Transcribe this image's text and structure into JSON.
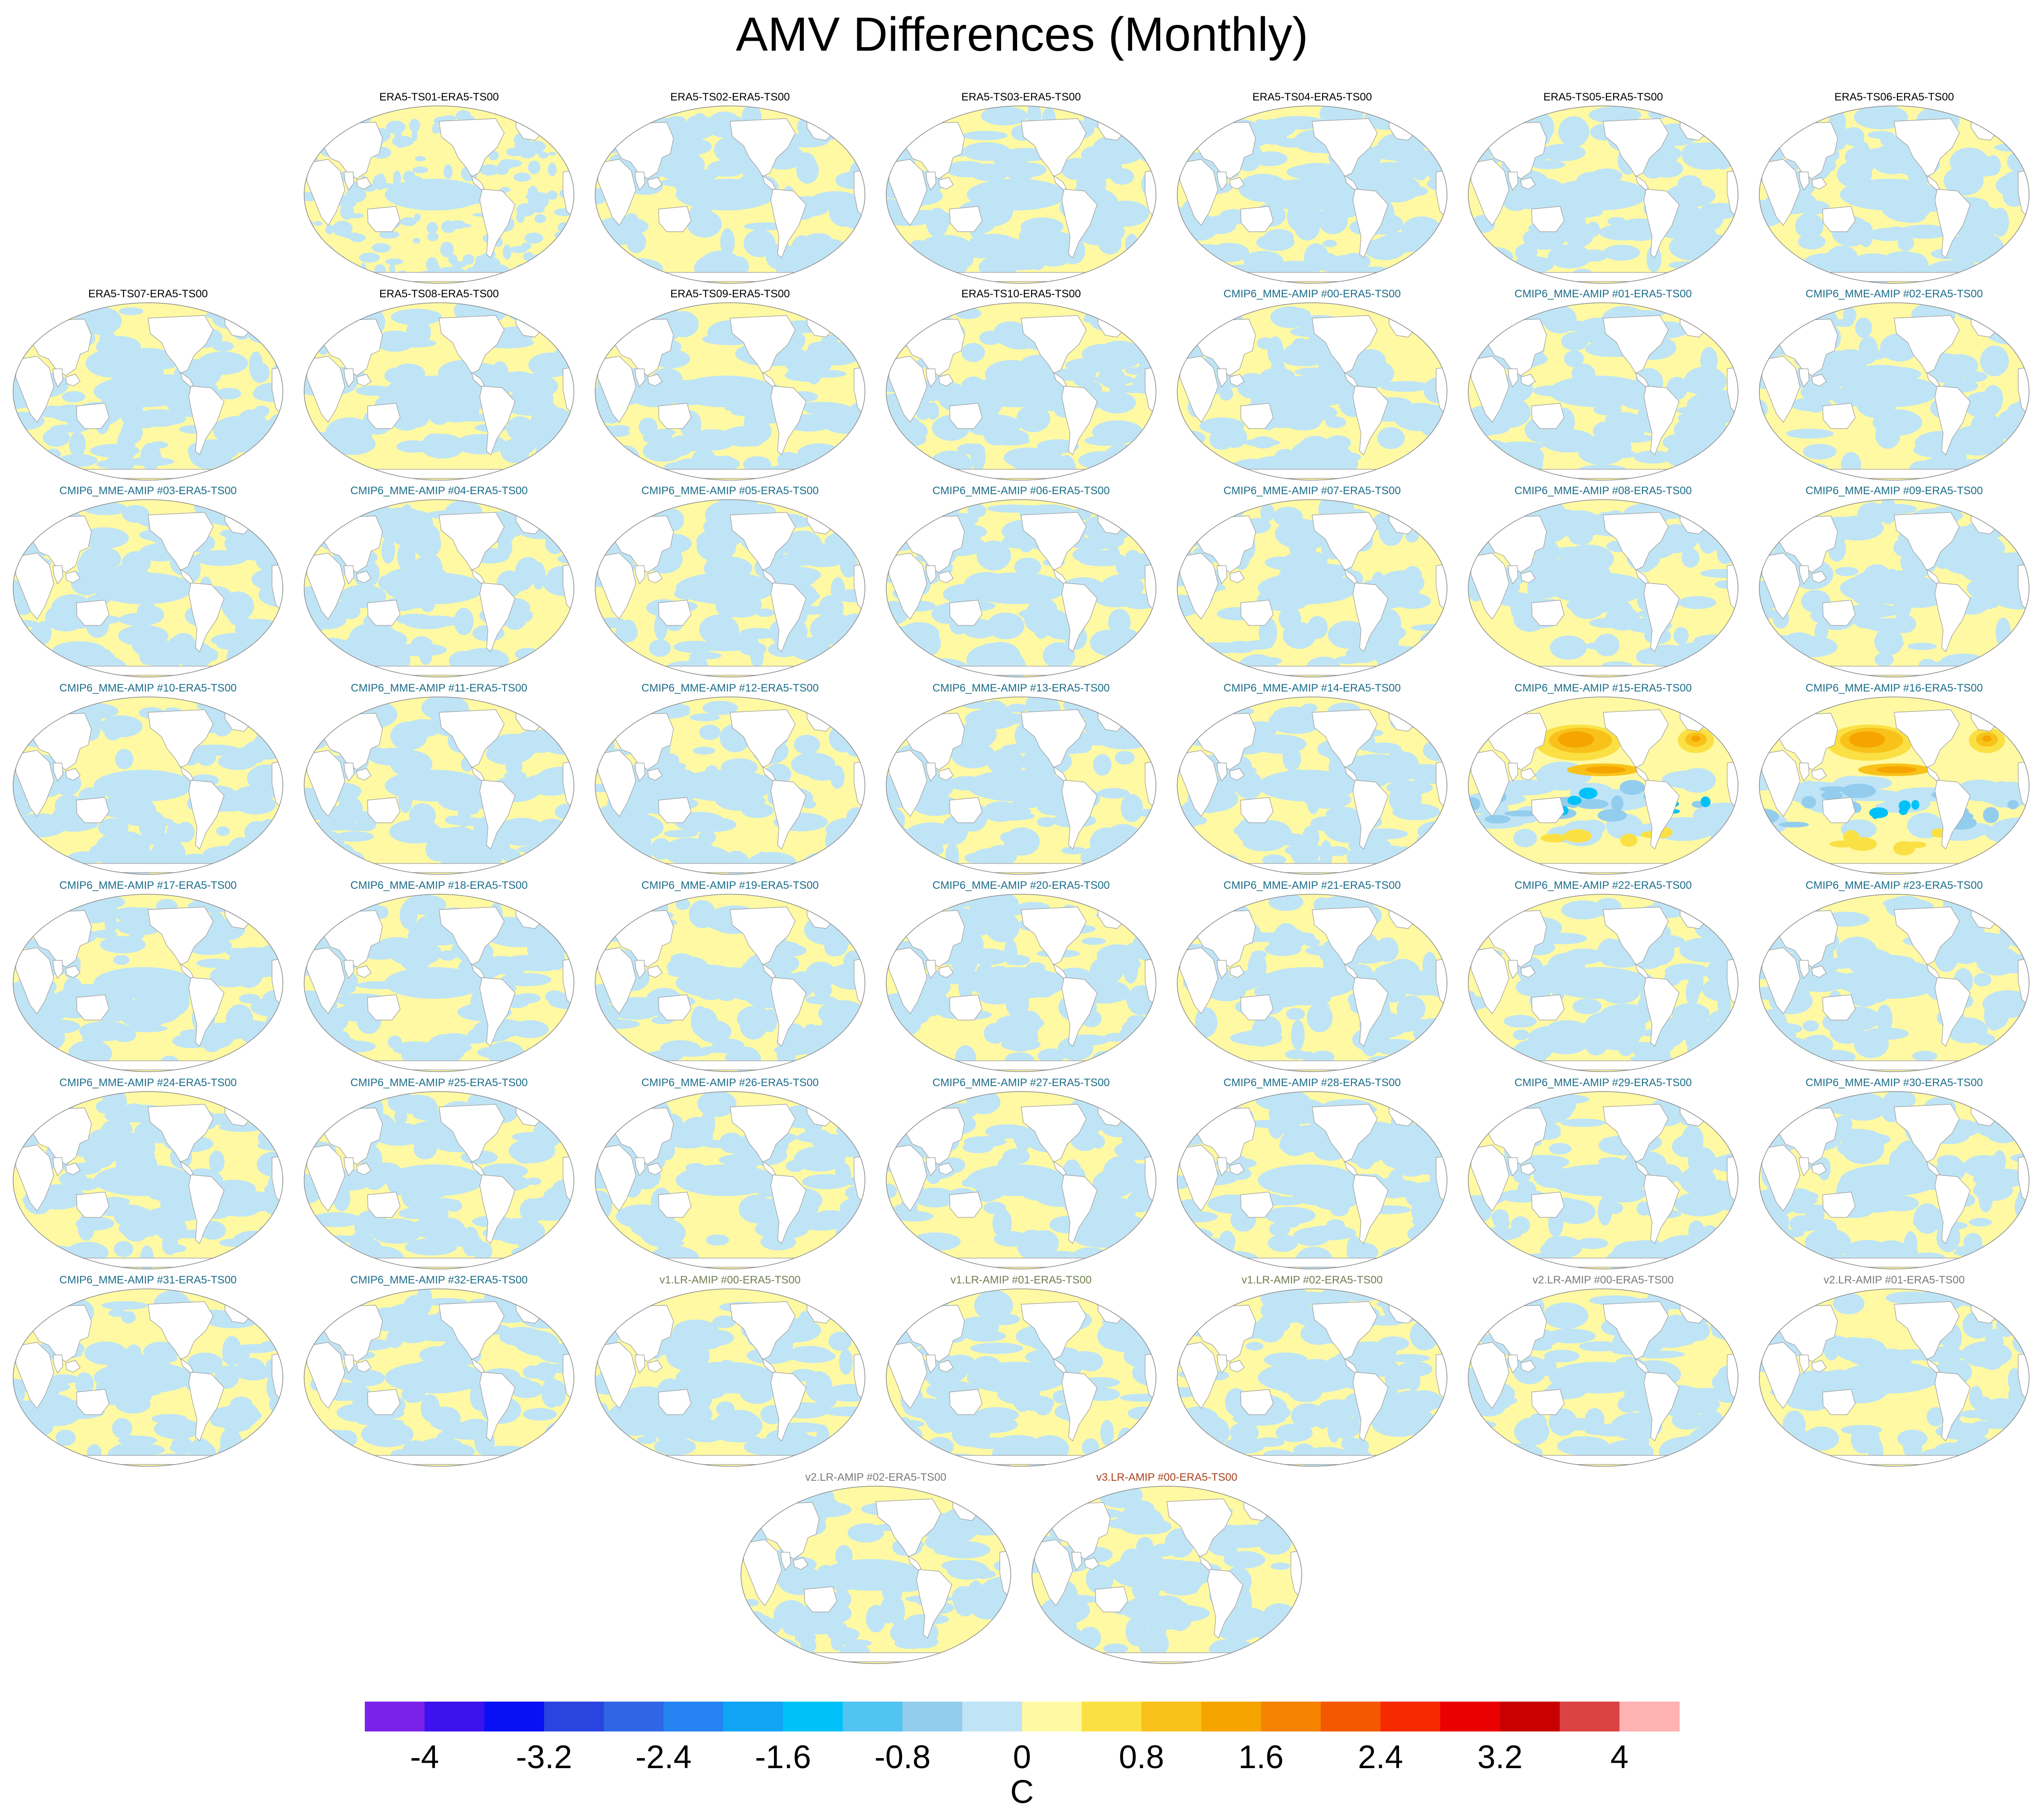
{
  "chart_data": {
    "type": "heatmap",
    "title": "AMV Differences (Monthly)",
    "projection": "Robinson global, Pacific-centered",
    "colorbar": {
      "unit": "C",
      "ticks": [
        "-4",
        "-3.2",
        "-2.4",
        "-1.6",
        "-0.8",
        "0",
        "0.8",
        "1.6",
        "2.4",
        "3.2",
        "4"
      ],
      "range": [
        -4.4,
        4.4
      ],
      "step": 0.4,
      "colors": [
        "#7a22e8",
        "#3d12ee",
        "#0a10f5",
        "#2a44e0",
        "#2f66e6",
        "#2583f2",
        "#12a5f5",
        "#00c2f8",
        "#52c4f2",
        "#93cdee",
        "#bfe4f6",
        "#fff9a3",
        "#fbe044",
        "#f8c21a",
        "#f6a500",
        "#f58300",
        "#f45800",
        "#f52a00",
        "#ea0000",
        "#c80000",
        "#dd4242",
        "#ffb2b2"
      ]
    },
    "panels": [
      {
        "label": "ERA5-TS01-ERA5-TS00",
        "group": "era5",
        "pattern": "mixed-fine"
      },
      {
        "label": "ERA5-TS02-ERA5-TS00",
        "group": "era5",
        "pattern": "mixed"
      },
      {
        "label": "ERA5-TS03-ERA5-TS00",
        "group": "era5",
        "pattern": "mixed"
      },
      {
        "label": "ERA5-TS04-ERA5-TS00",
        "group": "era5",
        "pattern": "mixed"
      },
      {
        "label": "ERA5-TS05-ERA5-TS00",
        "group": "era5",
        "pattern": "mixed"
      },
      {
        "label": "ERA5-TS06-ERA5-TS00",
        "group": "era5",
        "pattern": "mixed"
      },
      {
        "label": "ERA5-TS07-ERA5-TS00",
        "group": "era5",
        "pattern": "mixed"
      },
      {
        "label": "ERA5-TS08-ERA5-TS00",
        "group": "era5",
        "pattern": "mixed"
      },
      {
        "label": "ERA5-TS09-ERA5-TS00",
        "group": "era5",
        "pattern": "mixed"
      },
      {
        "label": "ERA5-TS10-ERA5-TS00",
        "group": "era5",
        "pattern": "mixed"
      },
      {
        "label": "CMIP6_MME-AMIP  #00-ERA5-TS00",
        "group": "cmip6",
        "pattern": "mixed"
      },
      {
        "label": "CMIP6_MME-AMIP  #01-ERA5-TS00",
        "group": "cmip6",
        "pattern": "mixed"
      },
      {
        "label": "CMIP6_MME-AMIP  #02-ERA5-TS00",
        "group": "cmip6",
        "pattern": "mixed"
      },
      {
        "label": "CMIP6_MME-AMIP  #03-ERA5-TS00",
        "group": "cmip6",
        "pattern": "mixed"
      },
      {
        "label": "CMIP6_MME-AMIP  #04-ERA5-TS00",
        "group": "cmip6",
        "pattern": "mixed"
      },
      {
        "label": "CMIP6_MME-AMIP  #05-ERA5-TS00",
        "group": "cmip6",
        "pattern": "mixed"
      },
      {
        "label": "CMIP6_MME-AMIP  #06-ERA5-TS00",
        "group": "cmip6",
        "pattern": "mixed"
      },
      {
        "label": "CMIP6_MME-AMIP  #07-ERA5-TS00",
        "group": "cmip6",
        "pattern": "mixed"
      },
      {
        "label": "CMIP6_MME-AMIP  #08-ERA5-TS00",
        "group": "cmip6",
        "pattern": "mixed"
      },
      {
        "label": "CMIP6_MME-AMIP  #09-ERA5-TS00",
        "group": "cmip6",
        "pattern": "mixed"
      },
      {
        "label": "CMIP6_MME-AMIP  #10-ERA5-TS00",
        "group": "cmip6",
        "pattern": "mixed"
      },
      {
        "label": "CMIP6_MME-AMIP  #11-ERA5-TS00",
        "group": "cmip6",
        "pattern": "mixed"
      },
      {
        "label": "CMIP6_MME-AMIP  #12-ERA5-TS00",
        "group": "cmip6",
        "pattern": "mixed"
      },
      {
        "label": "CMIP6_MME-AMIP  #13-ERA5-TS00",
        "group": "cmip6",
        "pattern": "mixed"
      },
      {
        "label": "CMIP6_MME-AMIP  #14-ERA5-TS00",
        "group": "cmip6",
        "pattern": "mixed"
      },
      {
        "label": "CMIP6_MME-AMIP  #15-ERA5-TS00",
        "group": "cmip6",
        "pattern": "strong"
      },
      {
        "label": "CMIP6_MME-AMIP  #16-ERA5-TS00",
        "group": "cmip6",
        "pattern": "strong"
      },
      {
        "label": "CMIP6_MME-AMIP  #17-ERA5-TS00",
        "group": "cmip6",
        "pattern": "mixed"
      },
      {
        "label": "CMIP6_MME-AMIP  #18-ERA5-TS00",
        "group": "cmip6",
        "pattern": "mixed"
      },
      {
        "label": "CMIP6_MME-AMIP  #19-ERA5-TS00",
        "group": "cmip6",
        "pattern": "mixed"
      },
      {
        "label": "CMIP6_MME-AMIP  #20-ERA5-TS00",
        "group": "cmip6",
        "pattern": "mixed"
      },
      {
        "label": "CMIP6_MME-AMIP  #21-ERA5-TS00",
        "group": "cmip6",
        "pattern": "mixed"
      },
      {
        "label": "CMIP6_MME-AMIP  #22-ERA5-TS00",
        "group": "cmip6",
        "pattern": "mixed"
      },
      {
        "label": "CMIP6_MME-AMIP  #23-ERA5-TS00",
        "group": "cmip6",
        "pattern": "mixed"
      },
      {
        "label": "CMIP6_MME-AMIP  #24-ERA5-TS00",
        "group": "cmip6",
        "pattern": "mixed"
      },
      {
        "label": "CMIP6_MME-AMIP  #25-ERA5-TS00",
        "group": "cmip6",
        "pattern": "mixed"
      },
      {
        "label": "CMIP6_MME-AMIP  #26-ERA5-TS00",
        "group": "cmip6",
        "pattern": "mixed"
      },
      {
        "label": "CMIP6_MME-AMIP  #27-ERA5-TS00",
        "group": "cmip6",
        "pattern": "mixed"
      },
      {
        "label": "CMIP6_MME-AMIP  #28-ERA5-TS00",
        "group": "cmip6",
        "pattern": "mixed"
      },
      {
        "label": "CMIP6_MME-AMIP  #29-ERA5-TS00",
        "group": "cmip6",
        "pattern": "mixed"
      },
      {
        "label": "CMIP6_MME-AMIP  #30-ERA5-TS00",
        "group": "cmip6",
        "pattern": "mixed"
      },
      {
        "label": "CMIP6_MME-AMIP  #31-ERA5-TS00",
        "group": "cmip6",
        "pattern": "mixed"
      },
      {
        "label": "CMIP6_MME-AMIP  #32-ERA5-TS00",
        "group": "cmip6",
        "pattern": "mixed"
      },
      {
        "label": "v1.LR-AMIP  #00-ERA5-TS00",
        "group": "v1",
        "pattern": "mixed"
      },
      {
        "label": "v1.LR-AMIP  #01-ERA5-TS00",
        "group": "v1",
        "pattern": "mixed"
      },
      {
        "label": "v1.LR-AMIP  #02-ERA5-TS00",
        "group": "v1",
        "pattern": "mixed"
      },
      {
        "label": "v2.LR-AMIP  #00-ERA5-TS00",
        "group": "v2",
        "pattern": "mixed"
      },
      {
        "label": "v2.LR-AMIP  #01-ERA5-TS00",
        "group": "v2",
        "pattern": "mixed"
      },
      {
        "label": "v2.LR-AMIP  #02-ERA5-TS00",
        "group": "v2",
        "pattern": "mixed"
      },
      {
        "label": "v3.LR-AMIP  #00-ERA5-TS00",
        "group": "v3",
        "pattern": "mixed"
      }
    ]
  },
  "colors": {
    "title_era5": "#000000",
    "title_cmip6": "#1c6d8a",
    "title_v1": "#6f7f52",
    "title_v2": "#7a7a7a",
    "title_v3": "#a8421c",
    "ocean_pos": "#fff9a3",
    "ocean_neg": "#bfe4f6",
    "land": "#ffffff",
    "outline": "#9a9a9a"
  }
}
